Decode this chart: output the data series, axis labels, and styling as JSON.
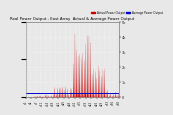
{
  "title": "Real Power Output - East Array  Actual & Average Power Output",
  "legend_actual": "Actual Power Output",
  "legend_average": "Average Power Output",
  "background_color": "#e8e8e8",
  "plot_bg_color": "#e8e8e8",
  "grid_color": "#ffffff",
  "bar_color": "#cc0000",
  "avg_line_color": "#0000cc",
  "title_color": "#000000",
  "ylim": [
    0,
    5000
  ],
  "avg_value": 280,
  "num_points": 600,
  "num_days": 60,
  "seed": 1234
}
